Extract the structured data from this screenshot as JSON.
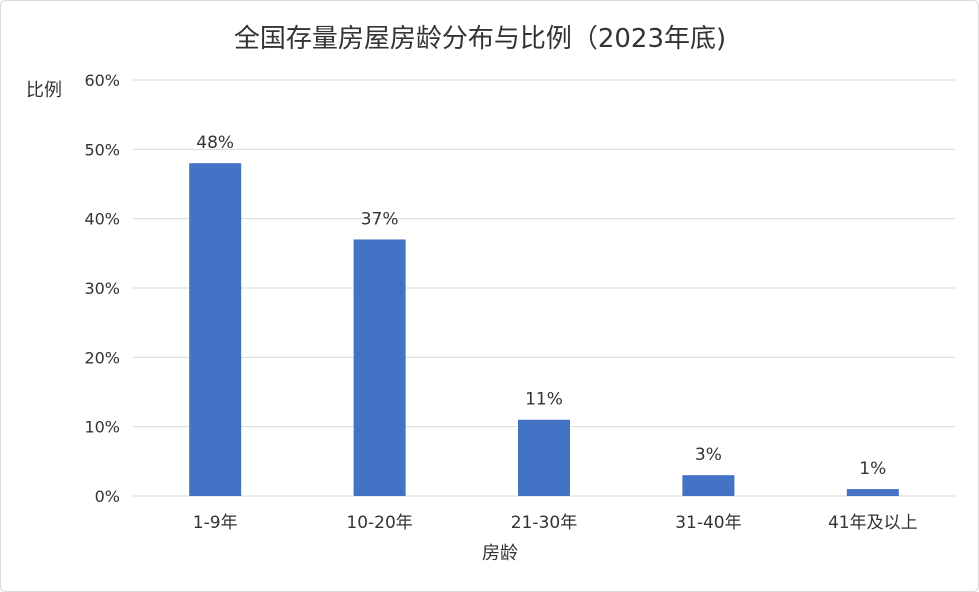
{
  "chart_data": {
    "type": "bar",
    "title": "全国存量房屋房龄分布与比例（2023年底)",
    "xlabel": "房龄",
    "ylabel": "比例",
    "categories": [
      "1-9年",
      "10-20年",
      "21-30年",
      "31-40年",
      "41年及以上"
    ],
    "values": [
      48,
      37,
      11,
      3,
      1
    ],
    "data_labels": [
      "48%",
      "37%",
      "11%",
      "3%",
      "1%"
    ],
    "ylim": [
      0,
      60
    ],
    "yticks": [
      0,
      10,
      20,
      30,
      40,
      50,
      60
    ],
    "ytick_labels": [
      "0%",
      "10%",
      "20%",
      "30%",
      "40%",
      "50%",
      "60%"
    ],
    "grid": true,
    "legend": "none",
    "bar_color": "#4472C4"
  }
}
